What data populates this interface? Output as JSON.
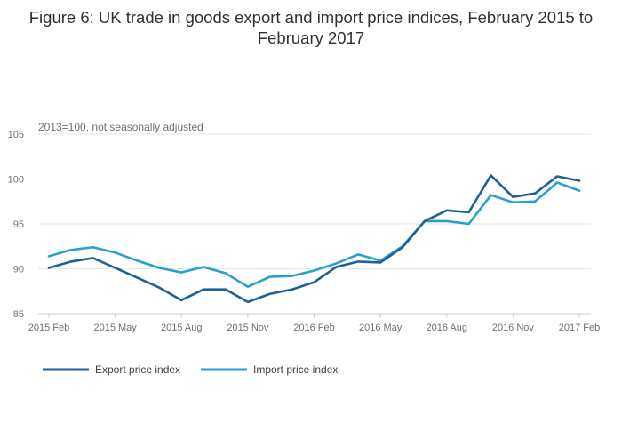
{
  "chart_data": {
    "type": "line",
    "title": "Figure 6: UK trade in goods export and import price indices, February 2015 to February 2017",
    "subtitle": "2013=100, not seasonally adjusted",
    "xlabel": "",
    "ylabel": "",
    "x": [
      "2015 Feb",
      "2015 Mar",
      "2015 Apr",
      "2015 May",
      "2015 Jun",
      "2015 Jul",
      "2015 Aug",
      "2015 Sep",
      "2015 Oct",
      "2015 Nov",
      "2015 Dec",
      "2016 Jan",
      "2016 Feb",
      "2016 Mar",
      "2016 Apr",
      "2016 May",
      "2016 Jun",
      "2016 Jul",
      "2016 Aug",
      "2016 Sep",
      "2016 Oct",
      "2016 Nov",
      "2016 Dec",
      "2017 Jan",
      "2017 Feb"
    ],
    "x_tick_labels": [
      "2015 Feb",
      "2015 May",
      "2015 Aug",
      "2015 Nov",
      "2016 Feb",
      "2016 May",
      "2016 Aug",
      "2016 Nov",
      "2017 Feb"
    ],
    "ylim": [
      85,
      105
    ],
    "y_ticks": [
      85,
      90,
      95,
      100,
      105
    ],
    "grid": true,
    "legend_position": "bottom-left",
    "series": [
      {
        "name": "Export price index",
        "color": "#206095",
        "values": [
          90.1,
          90.8,
          91.2,
          90.1,
          89.0,
          87.9,
          86.5,
          87.7,
          87.7,
          86.3,
          87.2,
          87.7,
          88.5,
          90.2,
          90.8,
          90.7,
          92.4,
          95.3,
          96.5,
          96.3,
          100.4,
          98.0,
          98.4,
          100.3,
          99.8
        ]
      },
      {
        "name": "Import price index",
        "color": "#27A0CC",
        "values": [
          91.4,
          92.1,
          92.4,
          91.8,
          90.9,
          90.1,
          89.6,
          90.2,
          89.5,
          88.0,
          89.1,
          89.2,
          89.8,
          90.6,
          91.6,
          90.9,
          92.5,
          95.3,
          95.3,
          95.0,
          98.2,
          97.4,
          97.5,
          99.6,
          98.7
        ]
      }
    ]
  }
}
